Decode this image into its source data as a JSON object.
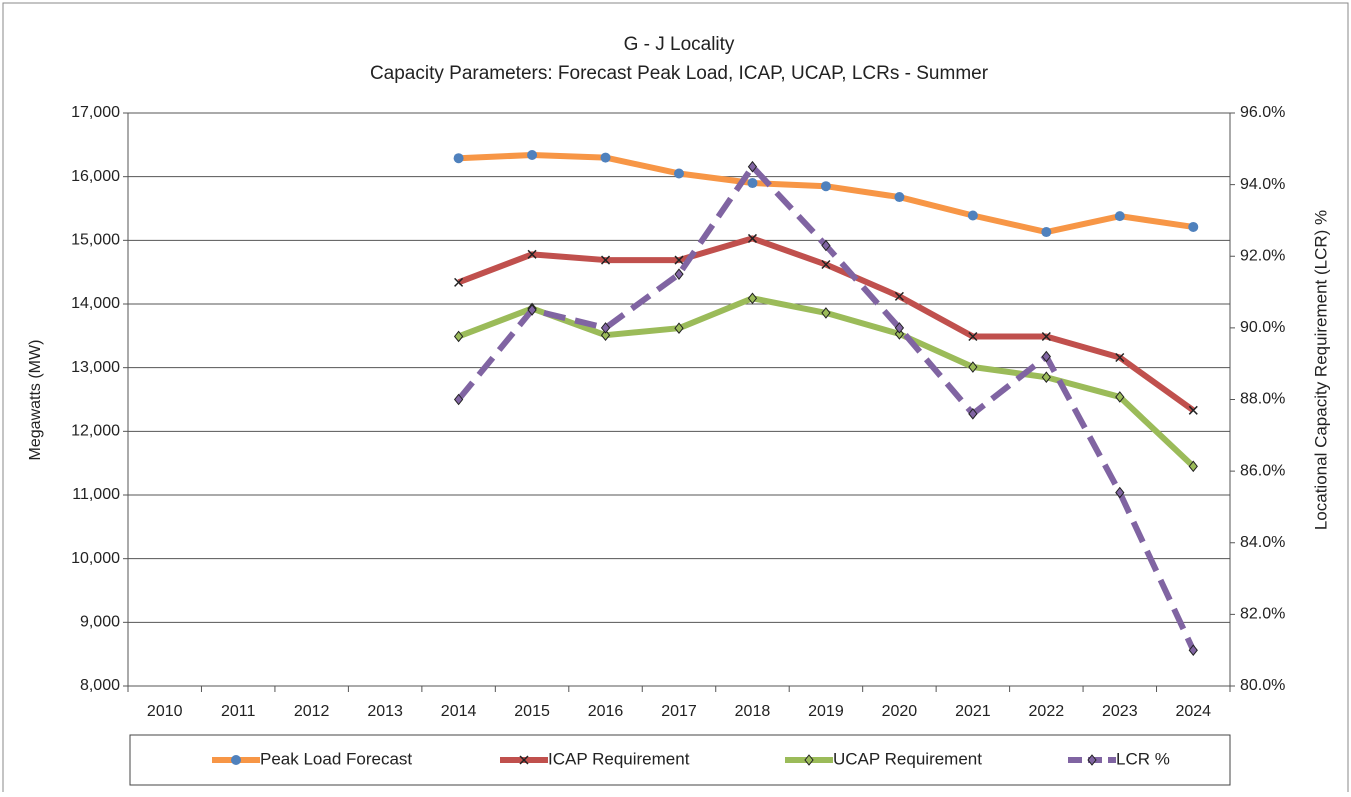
{
  "chart_data": {
    "type": "line",
    "title": "G - J Locality",
    "subtitle": "Capacity Parameters: Forecast Peak Load, ICAP, UCAP, LCRs - Summer",
    "y_label": "Megawatts (MW)",
    "y2_label": "Locational Capacity Requirement (LCR) %",
    "categories": [
      "2010",
      "2011",
      "2012",
      "2013",
      "2014",
      "2015",
      "2016",
      "2017",
      "2018",
      "2019",
      "2020",
      "2021",
      "2022",
      "2023",
      "2024"
    ],
    "ylim": [
      8000,
      17000
    ],
    "yticks": [
      {
        "value": 8000,
        "label": "8,000"
      },
      {
        "value": 9000,
        "label": "9,000"
      },
      {
        "value": 10000,
        "label": "10,000"
      },
      {
        "value": 11000,
        "label": "11,000"
      },
      {
        "value": 12000,
        "label": "12,000"
      },
      {
        "value": 13000,
        "label": "13,000"
      },
      {
        "value": 14000,
        "label": "14,000"
      },
      {
        "value": 15000,
        "label": "15,000"
      },
      {
        "value": 16000,
        "label": "16,000"
      },
      {
        "value": 17000,
        "label": "17,000"
      }
    ],
    "y2lim": [
      80,
      96
    ],
    "y2ticks": [
      {
        "value": 80,
        "label": "80.0%"
      },
      {
        "value": 82,
        "label": "82.0%"
      },
      {
        "value": 84,
        "label": "84.0%"
      },
      {
        "value": 86,
        "label": "86.0%"
      },
      {
        "value": 88,
        "label": "88.0%"
      },
      {
        "value": 90,
        "label": "90.0%"
      },
      {
        "value": 92,
        "label": "92.0%"
      },
      {
        "value": 94,
        "label": "94.0%"
      },
      {
        "value": 96,
        "label": "96.0%"
      }
    ],
    "grid": true,
    "legend": "bottom",
    "series": [
      {
        "name": "Peak Load Forecast",
        "color": "#f79646",
        "marker": "circle",
        "marker_color": "#4f81bd",
        "values": [
          null,
          null,
          null,
          null,
          16290,
          16340,
          16300,
          16050,
          15900,
          15850,
          15680,
          15390,
          15130,
          15380,
          15210
        ]
      },
      {
        "name": "ICAP Requirement",
        "color": "#c0504d",
        "marker": "x",
        "marker_color": "#222222",
        "values": [
          null,
          null,
          null,
          null,
          14340,
          14780,
          14690,
          14690,
          15030,
          14620,
          14120,
          13490,
          13490,
          13160,
          12330
        ]
      },
      {
        "name": "UCAP Requirement",
        "color": "#9bbb59",
        "marker": "diamond",
        "marker_color": "#9bbb59",
        "values": [
          null,
          null,
          null,
          null,
          13490,
          13930,
          13510,
          13620,
          14090,
          13860,
          13530,
          13010,
          12850,
          12540,
          11450
        ]
      },
      {
        "name": "LCR %",
        "color": "#8064a2",
        "marker": "diamond",
        "marker_color": "#8064a2",
        "dashed": true,
        "axis": "y2",
        "values": [
          null,
          null,
          null,
          null,
          88.0,
          90.5,
          90.0,
          91.5,
          94.5,
          92.3,
          90.0,
          87.6,
          89.2,
          85.4,
          81.0
        ]
      }
    ]
  }
}
